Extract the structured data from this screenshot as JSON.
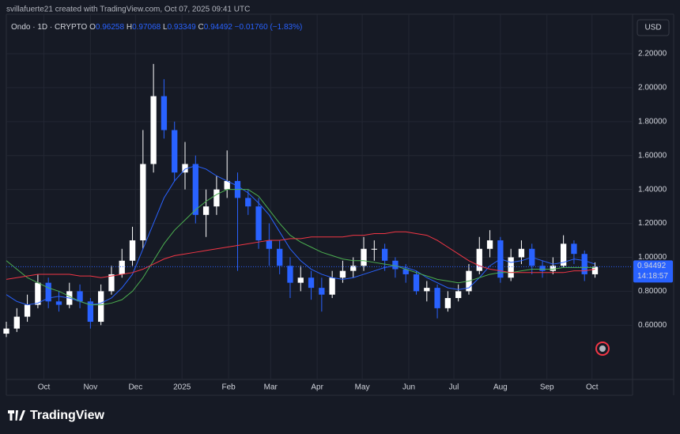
{
  "chart_data": {
    "type": "candlestick",
    "credit": "svillafuerte21 created with TradingView.com, Oct 07, 2025 09:41 UTC",
    "symbol": "Ondo · 1D · CRYPTO",
    "quote": [
      {
        "label": "O",
        "value": 0.96258
      },
      {
        "label": "H",
        "value": 0.97068
      },
      {
        "label": "L",
        "value": 0.93349
      },
      {
        "label": "C",
        "value": 0.94492
      }
    ],
    "change": "−0.01760 (−1.83%)",
    "currency": "USD",
    "last_price": 0.94492,
    "countdown": "14:18:57",
    "brand": "TradingView",
    "up_color": "#ffffff",
    "down_color": "#2962ff",
    "x": [
      -25,
      -18,
      -11,
      -4,
      3,
      10,
      17,
      24,
      31,
      38,
      45,
      52,
      59,
      66,
      73,
      80,
      87,
      94,
      101,
      108,
      115,
      122,
      129,
      136,
      143,
      150,
      157,
      164,
      171,
      178,
      185,
      192,
      199,
      206,
      213,
      220,
      227,
      234,
      241,
      248,
      255,
      262,
      269,
      276,
      283,
      290,
      297,
      304,
      311,
      318,
      325,
      332,
      339,
      346,
      353,
      360,
      367
    ],
    "opens": [
      0.55,
      0.58,
      0.65,
      0.72,
      0.85,
      0.74,
      0.72,
      0.8,
      0.74,
      0.62,
      0.8,
      0.9,
      0.98,
      1.1,
      1.55,
      1.95,
      1.75,
      1.5,
      1.55,
      1.25,
      1.3,
      1.4,
      1.45,
      1.35,
      1.3,
      1.1,
      1.05,
      0.95,
      0.85,
      0.88,
      0.82,
      0.78,
      0.88,
      0.92,
      0.95,
      1.05,
      1.05,
      0.98,
      0.93,
      0.9,
      0.8,
      0.82,
      0.7,
      0.76,
      0.8,
      0.92,
      1.05,
      1.1,
      0.88,
      1.0,
      1.05,
      0.95,
      0.92,
      0.95,
      1.08,
      1.02,
      0.9
    ],
    "highs": [
      0.62,
      0.7,
      0.78,
      0.9,
      0.88,
      0.8,
      0.85,
      0.84,
      0.76,
      0.84,
      0.95,
      1.05,
      1.18,
      1.75,
      2.14,
      2.05,
      1.8,
      1.68,
      1.6,
      1.4,
      1.48,
      1.63,
      1.5,
      1.4,
      1.35,
      1.2,
      1.1,
      1.0,
      0.95,
      0.92,
      0.88,
      0.92,
      0.98,
      1.0,
      1.12,
      1.1,
      1.08,
      1.0,
      0.96,
      0.92,
      0.86,
      0.84,
      0.8,
      0.84,
      0.96,
      1.12,
      1.16,
      1.12,
      1.05,
      1.1,
      1.08,
      0.98,
      1.0,
      1.13,
      1.1,
      1.04,
      0.97
    ],
    "lows": [
      0.53,
      0.56,
      0.62,
      0.7,
      0.7,
      0.68,
      0.7,
      0.7,
      0.58,
      0.6,
      0.78,
      0.88,
      0.95,
      1.05,
      1.5,
      1.7,
      1.45,
      1.4,
      1.2,
      1.12,
      1.25,
      1.35,
      0.92,
      1.25,
      1.05,
      0.95,
      0.9,
      0.76,
      0.8,
      0.75,
      0.68,
      0.76,
      0.85,
      0.88,
      0.92,
      0.98,
      0.92,
      0.88,
      0.85,
      0.78,
      0.74,
      0.64,
      0.68,
      0.74,
      0.78,
      0.9,
      1.0,
      0.85,
      0.86,
      0.96,
      0.9,
      0.88,
      0.9,
      0.94,
      0.96,
      0.86,
      0.88
    ],
    "closes": [
      0.58,
      0.65,
      0.72,
      0.85,
      0.74,
      0.72,
      0.8,
      0.74,
      0.62,
      0.8,
      0.9,
      0.98,
      1.1,
      1.55,
      1.95,
      1.75,
      1.5,
      1.55,
      1.25,
      1.3,
      1.4,
      1.45,
      1.35,
      1.3,
      1.1,
      1.05,
      0.95,
      0.85,
      0.88,
      0.82,
      0.78,
      0.88,
      0.92,
      0.95,
      1.05,
      1.05,
      0.98,
      0.93,
      0.9,
      0.8,
      0.82,
      0.7,
      0.76,
      0.8,
      0.92,
      1.05,
      1.1,
      0.88,
      1.0,
      1.05,
      0.95,
      0.92,
      0.95,
      1.08,
      1.02,
      0.9,
      0.945
    ],
    "series": [
      {
        "color": "#2962ff",
        "values": [
          0.78,
          0.74,
          0.72,
          0.73,
          0.76,
          0.77,
          0.76,
          0.74,
          0.72,
          0.73,
          0.76,
          0.82,
          0.9,
          1.05,
          1.2,
          1.35,
          1.45,
          1.52,
          1.54,
          1.52,
          1.48,
          1.45,
          1.42,
          1.38,
          1.32,
          1.25,
          1.15,
          1.05,
          0.98,
          0.93,
          0.9,
          0.88,
          0.87,
          0.88,
          0.9,
          0.92,
          0.94,
          0.95,
          0.94,
          0.92,
          0.88,
          0.85,
          0.82,
          0.81,
          0.82,
          0.88,
          0.95,
          0.99,
          0.97,
          0.98,
          1.0,
          0.98,
          0.96,
          0.97,
          0.99,
          0.98,
          0.96
        ]
      },
      {
        "color": "#4caf50",
        "values": [
          0.98,
          0.93,
          0.88,
          0.85,
          0.82,
          0.8,
          0.77,
          0.74,
          0.72,
          0.72,
          0.73,
          0.75,
          0.8,
          0.88,
          0.98,
          1.08,
          1.16,
          1.22,
          1.28,
          1.33,
          1.37,
          1.4,
          1.4,
          1.4,
          1.36,
          1.28,
          1.2,
          1.13,
          1.09,
          1.06,
          1.03,
          1.01,
          0.99,
          0.98,
          0.98,
          0.97,
          0.96,
          0.95,
          0.93,
          0.91,
          0.89,
          0.87,
          0.86,
          0.85,
          0.86,
          0.88,
          0.9,
          0.91,
          0.91,
          0.92,
          0.93,
          0.93,
          0.93,
          0.94,
          0.94,
          0.94,
          0.94
        ]
      },
      {
        "color": "#f23645",
        "values": [
          0.87,
          0.88,
          0.89,
          0.9,
          0.9,
          0.9,
          0.9,
          0.89,
          0.89,
          0.88,
          0.89,
          0.9,
          0.91,
          0.93,
          0.96,
          0.99,
          1.01,
          1.02,
          1.03,
          1.04,
          1.05,
          1.06,
          1.07,
          1.08,
          1.09,
          1.1,
          1.1,
          1.11,
          1.11,
          1.12,
          1.12,
          1.12,
          1.12,
          1.13,
          1.13,
          1.14,
          1.14,
          1.15,
          1.15,
          1.14,
          1.13,
          1.1,
          1.06,
          1.02,
          0.98,
          0.95,
          0.93,
          0.92,
          0.91,
          0.91,
          0.91,
          0.91,
          0.91,
          0.91,
          0.92,
          0.92,
          0.93
        ]
      }
    ],
    "xlim": [
      -25,
      392
    ],
    "xticks": [
      {
        "value": 0,
        "label": "Oct"
      },
      {
        "value": 31,
        "label": "Nov"
      },
      {
        "value": 61,
        "label": "Dec"
      },
      {
        "value": 92,
        "label": "2025"
      },
      {
        "value": 123,
        "label": "Feb"
      },
      {
        "value": 151,
        "label": "Mar"
      },
      {
        "value": 182,
        "label": "Apr"
      },
      {
        "value": 212,
        "label": "May"
      },
      {
        "value": 243,
        "label": "Jun"
      },
      {
        "value": 273,
        "label": "Jul"
      },
      {
        "value": 304,
        "label": "Aug"
      },
      {
        "value": 335,
        "label": "Sep"
      },
      {
        "value": 365,
        "label": "Oct"
      }
    ],
    "ylim": [
      0.28,
      2.433
    ],
    "yticks": [
      {
        "value": 0.6,
        "label": "0.60000"
      },
      {
        "value": 0.8,
        "label": "0.80000"
      },
      {
        "value": 1.0,
        "label": "1.00000"
      },
      {
        "value": 1.2,
        "label": "1.20000"
      },
      {
        "value": 1.4,
        "label": "1.40000"
      },
      {
        "value": 1.6,
        "label": "1.60000"
      },
      {
        "value": 1.8,
        "label": "1.80000"
      },
      {
        "value": 2.0,
        "label": "2.00000"
      },
      {
        "value": 2.2,
        "label": "2.20000"
      }
    ],
    "grid": true
  }
}
